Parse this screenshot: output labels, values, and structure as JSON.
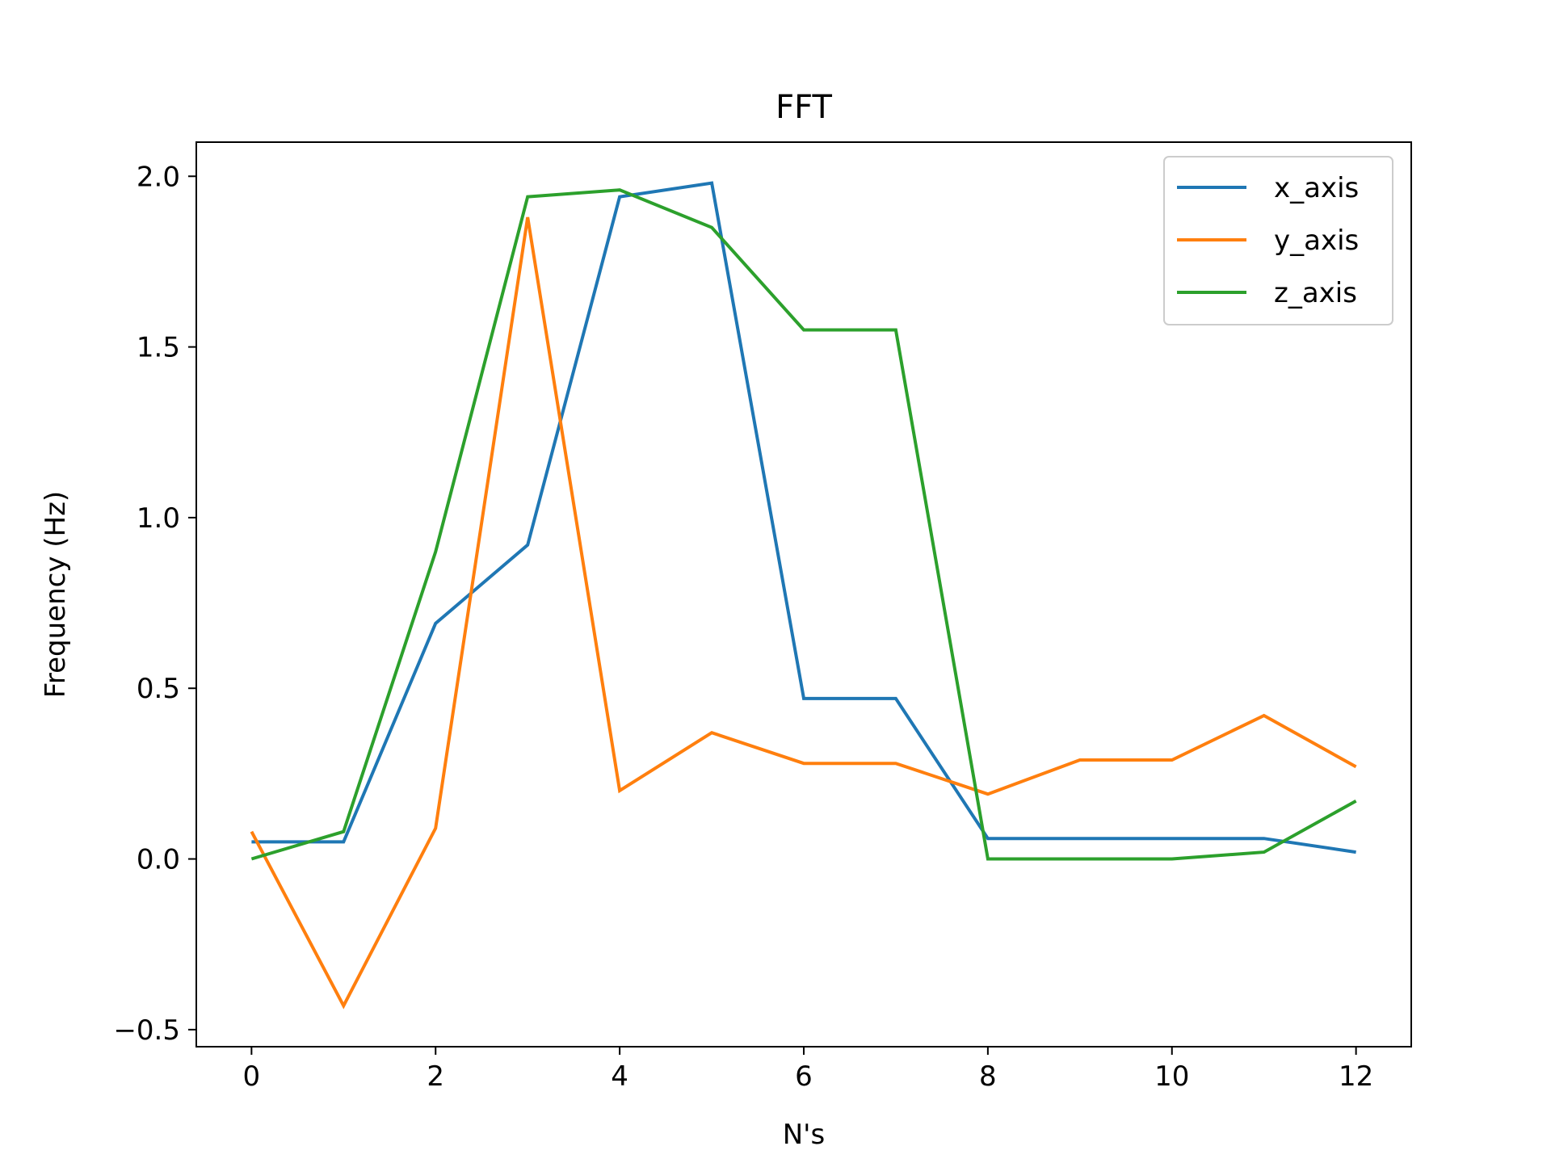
{
  "chart_data": {
    "type": "line",
    "title": "FFT",
    "xlabel": "N's",
    "ylabel": "Frequency (Hz)",
    "x": [
      0,
      1,
      2,
      3,
      4,
      5,
      6,
      7,
      8,
      9,
      10,
      11,
      12
    ],
    "xlim": [
      -0.6,
      12.6
    ],
    "ylim": [
      -0.55,
      2.1
    ],
    "xticks": [
      0,
      2,
      4,
      6,
      8,
      10,
      12
    ],
    "yticks": [
      -0.5,
      0.0,
      0.5,
      1.0,
      1.5,
      2.0
    ],
    "xtick_labels": [
      "0",
      "2",
      "4",
      "6",
      "8",
      "10",
      "12"
    ],
    "ytick_labels": [
      "−0.5",
      "0.0",
      "0.5",
      "1.0",
      "1.5",
      "2.0"
    ],
    "grid": false,
    "legend_position": "top-right",
    "series": [
      {
        "name": "x_axis",
        "color": "#1f77b4",
        "values": [
          0.05,
          0.05,
          0.69,
          0.92,
          1.94,
          1.98,
          0.47,
          0.47,
          0.06,
          0.06,
          0.06,
          0.06,
          0.02
        ]
      },
      {
        "name": "y_axis",
        "color": "#ff7f0e",
        "values": [
          0.08,
          -0.43,
          0.09,
          1.88,
          0.2,
          0.37,
          0.28,
          0.28,
          0.19,
          0.29,
          0.29,
          0.42,
          0.27
        ]
      },
      {
        "name": "z_axis",
        "color": "#2ca02c",
        "values": [
          0.0,
          0.08,
          0.9,
          1.94,
          1.96,
          1.85,
          1.55,
          1.55,
          0.0,
          0.0,
          0.0,
          0.02,
          0.17
        ]
      }
    ]
  }
}
